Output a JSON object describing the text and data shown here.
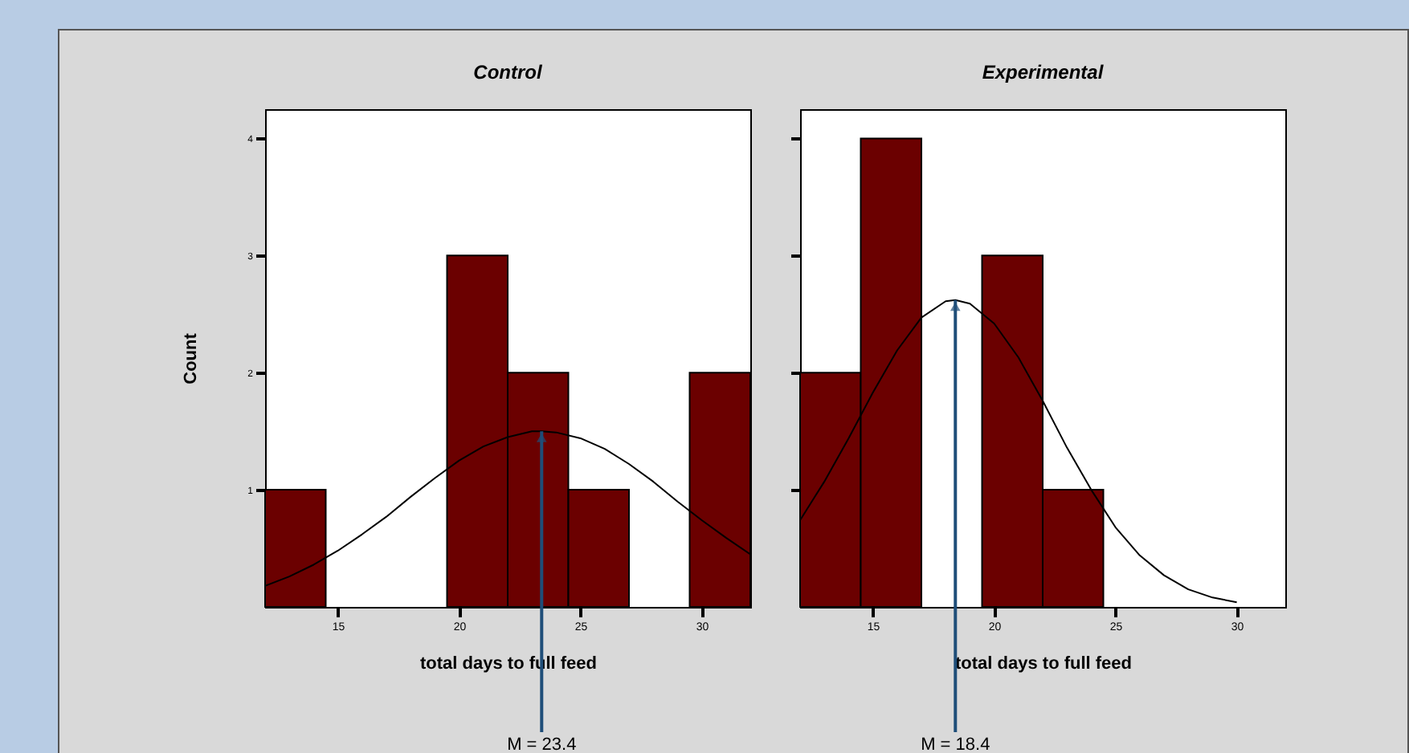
{
  "chart_data": [
    {
      "type": "histogram",
      "title": "Control",
      "xlabel": "total days to full feed",
      "ylabel": "Count",
      "color": "#6b0000",
      "bins": [
        12,
        14.5,
        17,
        19.5,
        22,
        24.5,
        27,
        29.5,
        32
      ],
      "values": [
        1,
        0,
        0,
        3,
        2,
        1,
        0,
        2
      ],
      "series": [
        {
          "type": "line",
          "color": "#000000",
          "x": [
            12,
            13,
            14,
            15,
            16,
            17,
            18,
            19,
            20,
            21,
            22,
            23,
            23.4,
            24,
            25,
            26,
            27,
            28,
            29,
            30,
            31,
            32
          ],
          "values": [
            0.18,
            0.26,
            0.36,
            0.48,
            0.62,
            0.77,
            0.94,
            1.1,
            1.25,
            1.37,
            1.45,
            1.5,
            1.5,
            1.49,
            1.44,
            1.35,
            1.22,
            1.07,
            0.9,
            0.74,
            0.59,
            0.45
          ]
        }
      ],
      "xlim": [
        12,
        32
      ],
      "xticks": [
        15,
        20,
        25,
        30
      ],
      "ylim": [
        0,
        4.25
      ],
      "yticks": [
        1,
        2,
        3,
        4
      ],
      "annotations": [
        {
          "text": "M = 23.4",
          "x": 23.4,
          "y": 1.5
        }
      ]
    },
    {
      "type": "histogram",
      "title": "Experimental",
      "xlabel": "total days to full feed",
      "color": "#6b0000",
      "bins": [
        12,
        14.5,
        17,
        19.5,
        22,
        24.5
      ],
      "values": [
        2,
        4,
        0,
        3,
        1
      ],
      "series": [
        {
          "type": "line",
          "color": "#000000",
          "x": [
            12,
            13,
            14,
            15,
            16,
            17,
            18,
            18.4,
            19,
            20,
            21,
            22,
            23,
            24,
            25,
            26,
            27,
            28,
            29,
            30
          ],
          "values": [
            0.74,
            1.07,
            1.44,
            1.83,
            2.19,
            2.47,
            2.61,
            2.62,
            2.59,
            2.42,
            2.13,
            1.76,
            1.36,
            1,
            0.68,
            0.44,
            0.27,
            0.15,
            0.08,
            0.04
          ]
        }
      ],
      "xlim": [
        12,
        32
      ],
      "xticks": [
        15,
        20,
        25,
        30
      ],
      "ylim": [
        0,
        4.25
      ],
      "yticks": [
        1,
        2,
        3,
        4
      ],
      "tick_labels": "x",
      "annotations": [
        {
          "text": "M = 18.4",
          "x": 18.4,
          "y": 2.62
        }
      ]
    }
  ]
}
